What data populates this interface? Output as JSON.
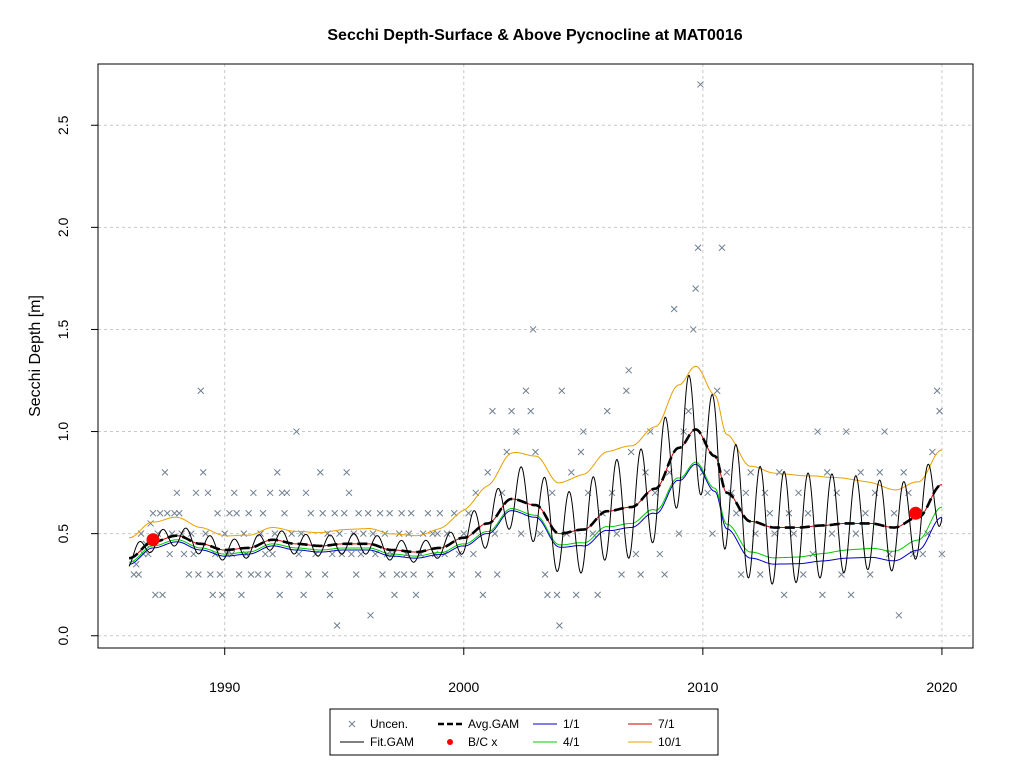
{
  "chart_data": {
    "type": "scatter",
    "title": "Secchi Depth-Surface & Above Pycnocline at MAT0016",
    "xlabel": "",
    "ylabel": "Secchi Depth [m]",
    "xlim": [
      1984.7,
      2021.3
    ],
    "ylim": [
      -0.06,
      2.8
    ],
    "x_ticks": [
      1990,
      2000,
      2010,
      2020
    ],
    "y_ticks": [
      0.0,
      0.5,
      1.0,
      1.5,
      2.0,
      2.5
    ],
    "x_tick_labels": [
      "1990",
      "2000",
      "2010",
      "2020"
    ],
    "y_tick_labels": [
      "0.0",
      "0.5",
      "1.0",
      "1.5",
      "2.0",
      "2.5"
    ],
    "grid": true,
    "legend_position": "bottom",
    "colors": {
      "obs": "#708090",
      "fit": "#000000",
      "avg": "#000000",
      "bc": "#ff0000",
      "s1": "#0000cd",
      "s4": "#00cc00",
      "s7": "#cc0000",
      "s10": "#e8a000"
    },
    "legend": [
      {
        "key": "obs",
        "label": "Uncen.",
        "marker": "x"
      },
      {
        "key": "avg",
        "label": "Avg.GAM",
        "marker": "dash"
      },
      {
        "key": "s1",
        "label": "1/1",
        "marker": "line"
      },
      {
        "key": "s7",
        "label": "7/1",
        "marker": "line"
      },
      {
        "key": "fit",
        "label": "Fit.GAM",
        "marker": "line"
      },
      {
        "key": "bc",
        "label": "B/C x",
        "marker": "dot"
      },
      {
        "key": "s4",
        "label": "4/1",
        "marker": "line"
      },
      {
        "key": "s10",
        "label": "10/1",
        "marker": "line"
      }
    ],
    "observations": [
      [
        1986.2,
        0.3
      ],
      [
        1986.3,
        0.35
      ],
      [
        1986.4,
        0.3
      ],
      [
        1986.5,
        0.5
      ],
      [
        1986.6,
        0.4
      ],
      [
        1986.7,
        0.45
      ],
      [
        1986.8,
        0.4
      ],
      [
        1986.9,
        0.55
      ],
      [
        1987.0,
        0.6
      ],
      [
        1987.1,
        0.2
      ],
      [
        1987.2,
        0.5
      ],
      [
        1987.3,
        0.6
      ],
      [
        1987.4,
        0.2
      ],
      [
        1987.5,
        0.8
      ],
      [
        1987.6,
        0.6
      ],
      [
        1987.7,
        0.4
      ],
      [
        1987.8,
        0.5
      ],
      [
        1987.9,
        0.6
      ],
      [
        1988.0,
        0.7
      ],
      [
        1988.1,
        0.6
      ],
      [
        1988.2,
        0.5
      ],
      [
        1988.3,
        0.4
      ],
      [
        1988.5,
        0.3
      ],
      [
        1988.6,
        0.5
      ],
      [
        1988.7,
        0.4
      ],
      [
        1988.8,
        0.7
      ],
      [
        1988.9,
        0.3
      ],
      [
        1989.0,
        1.2
      ],
      [
        1989.1,
        0.8
      ],
      [
        1989.2,
        0.5
      ],
      [
        1989.3,
        0.7
      ],
      [
        1989.4,
        0.3
      ],
      [
        1989.5,
        0.2
      ],
      [
        1989.6,
        0.4
      ],
      [
        1989.7,
        0.6
      ],
      [
        1989.8,
        0.3
      ],
      [
        1989.9,
        0.2
      ],
      [
        1990.0,
        0.5
      ],
      [
        1990.1,
        0.4
      ],
      [
        1990.2,
        0.6
      ],
      [
        1990.3,
        0.4
      ],
      [
        1990.4,
        0.7
      ],
      [
        1990.5,
        0.6
      ],
      [
        1990.6,
        0.3
      ],
      [
        1990.7,
        0.2
      ],
      [
        1990.8,
        0.5
      ],
      [
        1990.9,
        0.4
      ],
      [
        1991.0,
        0.6
      ],
      [
        1991.1,
        0.3
      ],
      [
        1991.2,
        0.7
      ],
      [
        1991.4,
        0.3
      ],
      [
        1991.5,
        0.5
      ],
      [
        1991.6,
        0.6
      ],
      [
        1991.7,
        0.4
      ],
      [
        1991.8,
        0.3
      ],
      [
        1991.9,
        0.7
      ],
      [
        1992.0,
        0.4
      ],
      [
        1992.1,
        0.5
      ],
      [
        1992.2,
        0.8
      ],
      [
        1992.3,
        0.2
      ],
      [
        1992.4,
        0.7
      ],
      [
        1992.5,
        0.6
      ],
      [
        1992.6,
        0.7
      ],
      [
        1992.7,
        0.3
      ],
      [
        1992.8,
        0.5
      ],
      [
        1993.0,
        1.0
      ],
      [
        1993.1,
        0.4
      ],
      [
        1993.2,
        0.5
      ],
      [
        1993.3,
        0.2
      ],
      [
        1993.4,
        0.7
      ],
      [
        1993.5,
        0.3
      ],
      [
        1993.6,
        0.6
      ],
      [
        1993.8,
        0.4
      ],
      [
        1994.0,
        0.8
      ],
      [
        1994.1,
        0.6
      ],
      [
        1994.2,
        0.3
      ],
      [
        1994.3,
        0.5
      ],
      [
        1994.4,
        0.2
      ],
      [
        1994.5,
        0.4
      ],
      [
        1994.6,
        0.6
      ],
      [
        1994.7,
        0.05
      ],
      [
        1994.8,
        0.5
      ],
      [
        1994.9,
        0.4
      ],
      [
        1995.0,
        0.6
      ],
      [
        1995.1,
        0.8
      ],
      [
        1995.2,
        0.7
      ],
      [
        1995.3,
        0.4
      ],
      [
        1995.4,
        0.5
      ],
      [
        1995.5,
        0.3
      ],
      [
        1995.6,
        0.6
      ],
      [
        1995.7,
        0.4
      ],
      [
        1995.8,
        0.5
      ],
      [
        1996.0,
        0.6
      ],
      [
        1996.1,
        0.1
      ],
      [
        1996.2,
        0.5
      ],
      [
        1996.3,
        0.4
      ],
      [
        1996.5,
        0.6
      ],
      [
        1996.6,
        0.3
      ],
      [
        1996.7,
        0.5
      ],
      [
        1996.8,
        0.4
      ],
      [
        1996.9,
        0.6
      ],
      [
        1997.0,
        0.4
      ],
      [
        1997.1,
        0.2
      ],
      [
        1997.2,
        0.3
      ],
      [
        1997.3,
        0.5
      ],
      [
        1997.4,
        0.6
      ],
      [
        1997.5,
        0.3
      ],
      [
        1997.6,
        0.4
      ],
      [
        1997.7,
        0.5
      ],
      [
        1997.8,
        0.6
      ],
      [
        1997.9,
        0.3
      ],
      [
        1998.0,
        0.2
      ],
      [
        1998.2,
        0.4
      ],
      [
        1998.3,
        0.5
      ],
      [
        1998.5,
        0.6
      ],
      [
        1998.6,
        0.3
      ],
      [
        1998.7,
        0.5
      ],
      [
        1998.8,
        0.4
      ],
      [
        1998.9,
        0.5
      ],
      [
        1999.0,
        0.6
      ],
      [
        1999.2,
        0.4
      ],
      [
        1999.3,
        0.5
      ],
      [
        1999.5,
        0.3
      ],
      [
        1999.6,
        0.6
      ],
      [
        1999.8,
        0.4
      ],
      [
        2000.0,
        0.5
      ],
      [
        2000.2,
        0.6
      ],
      [
        2000.4,
        0.4
      ],
      [
        2000.5,
        0.7
      ],
      [
        2000.6,
        0.3
      ],
      [
        2000.8,
        0.2
      ],
      [
        2001.0,
        0.8
      ],
      [
        2001.2,
        1.1
      ],
      [
        2001.3,
        0.5
      ],
      [
        2001.4,
        0.3
      ],
      [
        2001.6,
        0.7
      ],
      [
        2001.8,
        0.9
      ],
      [
        2002.0,
        1.1
      ],
      [
        2002.2,
        1.0
      ],
      [
        2002.4,
        0.5
      ],
      [
        2002.6,
        1.2
      ],
      [
        2002.8,
        1.1
      ],
      [
        2002.9,
        1.5
      ],
      [
        2003.0,
        0.9
      ],
      [
        2003.2,
        0.5
      ],
      [
        2003.4,
        0.3
      ],
      [
        2003.5,
        0.2
      ],
      [
        2003.7,
        0.7
      ],
      [
        2003.9,
        0.2
      ],
      [
        2004.0,
        0.05
      ],
      [
        2004.1,
        1.2
      ],
      [
        2004.3,
        0.5
      ],
      [
        2004.5,
        0.8
      ],
      [
        2004.7,
        0.2
      ],
      [
        2004.9,
        0.9
      ],
      [
        2005.0,
        1.0
      ],
      [
        2005.2,
        0.7
      ],
      [
        2005.4,
        0.5
      ],
      [
        2005.6,
        0.2
      ],
      [
        2005.8,
        0.6
      ],
      [
        2006.0,
        1.1
      ],
      [
        2006.2,
        0.7
      ],
      [
        2006.4,
        0.5
      ],
      [
        2006.6,
        0.3
      ],
      [
        2006.8,
        1.2
      ],
      [
        2006.9,
        1.3
      ],
      [
        2007.0,
        0.9
      ],
      [
        2007.2,
        0.4
      ],
      [
        2007.4,
        0.3
      ],
      [
        2007.6,
        0.8
      ],
      [
        2007.8,
        1.0
      ],
      [
        2008.0,
        0.7
      ],
      [
        2008.2,
        0.4
      ],
      [
        2008.4,
        0.3
      ],
      [
        2008.6,
        0.8
      ],
      [
        2008.8,
        1.6
      ],
      [
        2009.0,
        0.5
      ],
      [
        2009.2,
        1.0
      ],
      [
        2009.4,
        1.1
      ],
      [
        2009.6,
        1.5
      ],
      [
        2009.7,
        1.7
      ],
      [
        2009.8,
        1.9
      ],
      [
        2009.9,
        2.7
      ],
      [
        2010.0,
        0.8
      ],
      [
        2010.2,
        0.7
      ],
      [
        2010.4,
        0.5
      ],
      [
        2010.6,
        1.2
      ],
      [
        2010.8,
        1.9
      ],
      [
        2011.0,
        0.8
      ],
      [
        2011.2,
        0.7
      ],
      [
        2011.4,
        0.6
      ],
      [
        2011.6,
        0.3
      ],
      [
        2011.8,
        0.7
      ],
      [
        2012.0,
        0.8
      ],
      [
        2012.2,
        0.5
      ],
      [
        2012.4,
        0.3
      ],
      [
        2012.6,
        0.7
      ],
      [
        2012.8,
        0.6
      ],
      [
        2013.0,
        0.5
      ],
      [
        2013.2,
        0.8
      ],
      [
        2013.4,
        0.2
      ],
      [
        2013.6,
        0.6
      ],
      [
        2013.8,
        0.5
      ],
      [
        2014.0,
        0.7
      ],
      [
        2014.2,
        0.3
      ],
      [
        2014.4,
        0.6
      ],
      [
        2014.6,
        0.4
      ],
      [
        2014.8,
        1.0
      ],
      [
        2015.0,
        0.2
      ],
      [
        2015.2,
        0.8
      ],
      [
        2015.4,
        0.5
      ],
      [
        2015.6,
        0.7
      ],
      [
        2015.8,
        0.3
      ],
      [
        2016.0,
        1.0
      ],
      [
        2016.2,
        0.2
      ],
      [
        2016.4,
        0.5
      ],
      [
        2016.6,
        0.8
      ],
      [
        2016.8,
        0.6
      ],
      [
        2017.0,
        0.3
      ],
      [
        2017.2,
        0.7
      ],
      [
        2017.4,
        0.8
      ],
      [
        2017.6,
        1.0
      ],
      [
        2017.8,
        0.4
      ],
      [
        2018.0,
        0.6
      ],
      [
        2018.2,
        0.1
      ],
      [
        2018.4,
        0.8
      ],
      [
        2018.6,
        0.7
      ],
      [
        2018.8,
        0.4
      ],
      [
        2019.0,
        0.6
      ],
      [
        2019.2,
        0.4
      ],
      [
        2019.4,
        0.5
      ],
      [
        2019.6,
        0.9
      ],
      [
        2019.8,
        1.2
      ],
      [
        2019.9,
        1.1
      ],
      [
        2020.0,
        0.4
      ]
    ],
    "bc_points": [
      [
        1987.0,
        0.47
      ],
      [
        2018.9,
        0.6
      ]
    ],
    "trend_anchors": [
      [
        1986.0,
        0.38
      ],
      [
        1987.0,
        0.46
      ],
      [
        1988.0,
        0.49
      ],
      [
        1989.0,
        0.45
      ],
      [
        1990.0,
        0.42
      ],
      [
        1991.0,
        0.43
      ],
      [
        1992.0,
        0.47
      ],
      [
        1993.0,
        0.45
      ],
      [
        1994.0,
        0.44
      ],
      [
        1995.0,
        0.45
      ],
      [
        1996.0,
        0.45
      ],
      [
        1997.0,
        0.42
      ],
      [
        1998.0,
        0.41
      ],
      [
        1999.0,
        0.43
      ],
      [
        2000.0,
        0.48
      ],
      [
        2001.0,
        0.55
      ],
      [
        2002.0,
        0.67
      ],
      [
        2003.0,
        0.64
      ],
      [
        2004.0,
        0.5
      ],
      [
        2005.0,
        0.52
      ],
      [
        2006.0,
        0.61
      ],
      [
        2007.0,
        0.63
      ],
      [
        2008.0,
        0.72
      ],
      [
        2009.0,
        0.92
      ],
      [
        2009.7,
        1.01
      ],
      [
        2010.5,
        0.88
      ],
      [
        2011.0,
        0.7
      ],
      [
        2012.0,
        0.56
      ],
      [
        2013.0,
        0.53
      ],
      [
        2014.0,
        0.53
      ],
      [
        2015.0,
        0.54
      ],
      [
        2016.0,
        0.55
      ],
      [
        2017.0,
        0.55
      ],
      [
        2018.0,
        0.53
      ],
      [
        2019.0,
        0.58
      ],
      [
        2020.0,
        0.74
      ]
    ],
    "band_offsets": {
      "s1": [
        [
          1986.0,
          -0.03
        ],
        [
          1998.0,
          -0.03
        ],
        [
          2003.0,
          -0.06
        ],
        [
          2007.0,
          -0.1
        ],
        [
          2009.7,
          -0.17
        ],
        [
          2012.0,
          -0.18
        ],
        [
          2020.0,
          -0.16
        ]
      ],
      "s4": [
        [
          1986.0,
          -0.02
        ],
        [
          1998.0,
          -0.02
        ],
        [
          2003.0,
          -0.05
        ],
        [
          2007.0,
          -0.08
        ],
        [
          2009.7,
          -0.16
        ],
        [
          2012.0,
          -0.15
        ],
        [
          2020.0,
          -0.11
        ]
      ],
      "s7": [
        [
          1986.0,
          0.0
        ],
        [
          2020.0,
          0.0
        ]
      ],
      "s10": [
        [
          1986.0,
          0.1
        ],
        [
          1992.0,
          0.06
        ],
        [
          1998.0,
          0.08
        ],
        [
          2003.0,
          0.24
        ],
        [
          2007.0,
          0.3
        ],
        [
          2009.7,
          0.31
        ],
        [
          2012.0,
          0.27
        ],
        [
          2020.0,
          0.17
        ]
      ]
    },
    "seasonal_amplitude": [
      [
        1986.0,
        0.05
      ],
      [
        1999.0,
        0.05
      ],
      [
        2001.0,
        0.12
      ],
      [
        2003.0,
        0.18
      ],
      [
        2007.0,
        0.25
      ],
      [
        2009.7,
        0.3
      ],
      [
        2012.0,
        0.28
      ],
      [
        2020.0,
        0.2
      ]
    ]
  }
}
